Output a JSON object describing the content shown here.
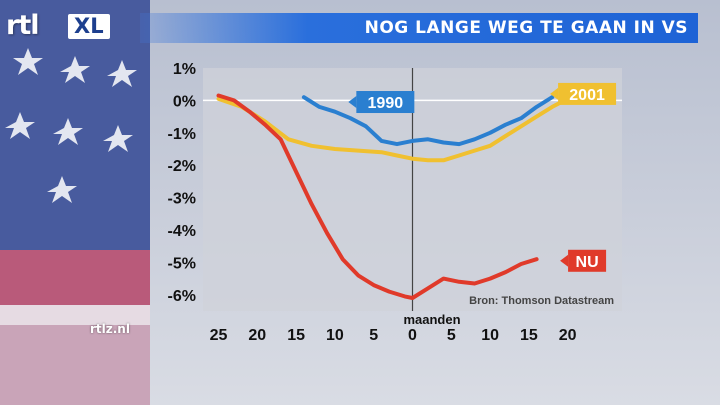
{
  "brand": {
    "logo_text": "rtl",
    "logo_badge": "XL",
    "watermark": "rtlz.nl"
  },
  "headline": "NOG LANGE WEG TE GAAN IN VS",
  "colors": {
    "s1990": "#2a7fd0",
    "s2001": "#f0c030",
    "nu": "#e03a2a",
    "headline_bar": "#1e63d6"
  },
  "chart_data": {
    "type": "line",
    "title": "",
    "xlabel": "maanden",
    "ylabel": "",
    "xlim": [
      -27,
      27
    ],
    "ylim": [
      -6.5,
      1
    ],
    "x_tick_values": [
      -25,
      -20,
      -15,
      -10,
      -5,
      0,
      5,
      10,
      15,
      20
    ],
    "x_tick_labels": [
      "25",
      "20",
      "15",
      "10",
      "5",
      "0",
      "5",
      "10",
      "15",
      "20"
    ],
    "y_ticks": [
      1,
      0,
      -1,
      -2,
      -3,
      -4,
      -5,
      -6
    ],
    "y_tick_labels": [
      "1%",
      "0%",
      "-1%",
      "-2%",
      "-3%",
      "-4%",
      "-5%",
      "-6%"
    ],
    "grid": false,
    "source": "Bron: Thomson Datastream",
    "series": [
      {
        "name": "1990",
        "label_pos": [
          -3.5,
          -0.05
        ],
        "x": [
          -14,
          -12,
          -10,
          -8,
          -6,
          -4,
          -2,
          0,
          2,
          4,
          6,
          8,
          10,
          12,
          14,
          16,
          18
        ],
        "y": [
          0.1,
          -0.2,
          -0.35,
          -0.55,
          -0.8,
          -1.25,
          -1.35,
          -1.25,
          -1.2,
          -1.3,
          -1.35,
          -1.2,
          -1.0,
          -0.75,
          -0.55,
          -0.2,
          0.1
        ]
      },
      {
        "name": "2001",
        "label_pos": [
          22.5,
          0.2
        ],
        "x": [
          -25,
          -22,
          -19,
          -16,
          -13,
          -10,
          -7,
          -4,
          -2,
          0,
          2,
          4,
          6,
          8,
          10,
          12,
          14,
          16,
          18,
          20
        ],
        "y": [
          0.05,
          -0.2,
          -0.65,
          -1.2,
          -1.4,
          -1.5,
          -1.55,
          -1.6,
          -1.7,
          -1.8,
          -1.85,
          -1.85,
          -1.7,
          -1.55,
          -1.4,
          -1.1,
          -0.8,
          -0.5,
          -0.2,
          0.05
        ]
      },
      {
        "name": "NU",
        "label_pos": [
          22.5,
          -4.95
        ],
        "x": [
          -25,
          -23,
          -21,
          -19,
          -17,
          -15,
          -13,
          -11,
          -9,
          -7,
          -5,
          -3,
          -1,
          0,
          2,
          4,
          6,
          8,
          10,
          12,
          14,
          16
        ],
        "y": [
          0.15,
          0.0,
          -0.35,
          -0.75,
          -1.2,
          -2.2,
          -3.2,
          -4.1,
          -4.9,
          -5.4,
          -5.7,
          -5.9,
          -6.05,
          -6.1,
          -5.8,
          -5.5,
          -5.6,
          -5.65,
          -5.5,
          -5.3,
          -5.05,
          -4.9
        ]
      }
    ]
  }
}
